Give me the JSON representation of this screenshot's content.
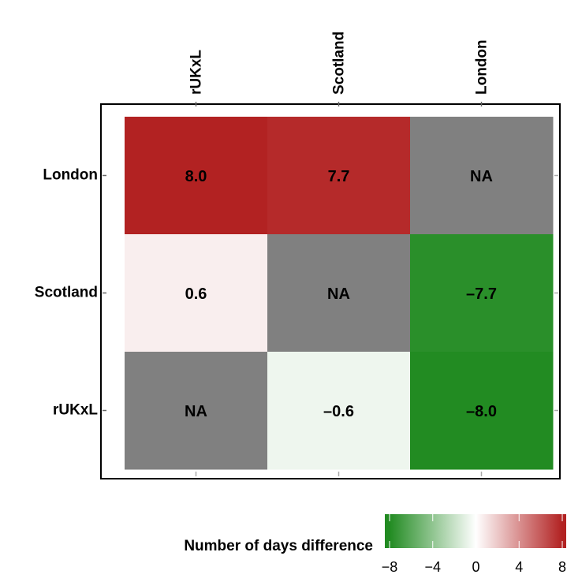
{
  "chart_data": {
    "type": "heatmap",
    "x_categories": [
      "rUKxL",
      "Scotland",
      "London"
    ],
    "y_categories": [
      "London",
      "Scotland",
      "rUKxL"
    ],
    "values": [
      [
        8.0,
        7.7,
        null
      ],
      [
        0.6,
        null,
        -7.7
      ],
      [
        null,
        -0.6,
        -8.0
      ]
    ],
    "value_labels": [
      [
        "8.0",
        "7.7",
        "NA"
      ],
      [
        "0.6",
        "NA",
        "–7.7"
      ],
      [
        "NA",
        "–0.6",
        "–8.0"
      ]
    ],
    "colors": {
      "low": "#228B22",
      "mid": "#FFFFFF",
      "high": "#B22222",
      "na": "#808080"
    },
    "legend_title": "Number of days difference",
    "zlim": [
      -8,
      8
    ],
    "zticks": [
      {
        "value": -8,
        "label": "−8"
      },
      {
        "value": -4,
        "label": "−4"
      },
      0,
      4,
      8
    ]
  }
}
